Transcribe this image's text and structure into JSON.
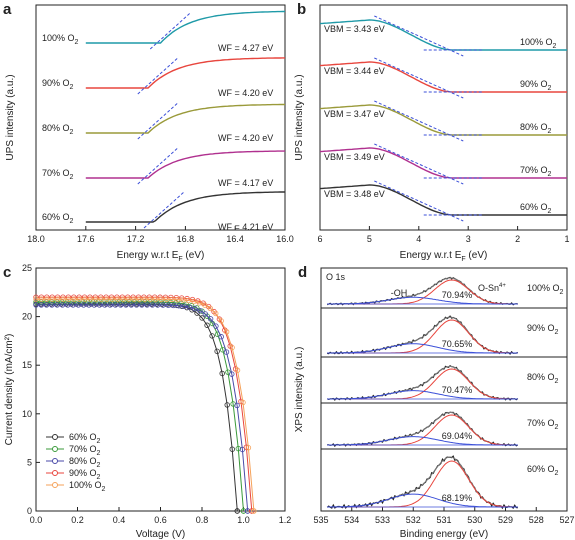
{
  "chart_data": [
    {
      "panel": "a",
      "type": "line",
      "xlabel_main": "Energy w.r.t E",
      "xlabel_sub": "F",
      "xlabel_unit": " (eV)",
      "ylabel": "UPS intensity (a.u.)",
      "xlim": [
        18.0,
        16.0
      ],
      "x_reversed": true,
      "xticks": [
        18.0,
        17.6,
        17.2,
        16.8,
        16.4,
        16.0
      ],
      "xtick_labels": [
        "18.0",
        "17.6",
        "17.2",
        "16.8",
        "16.4",
        "16.0"
      ],
      "series": [
        {
          "name": "100% O",
          "sub": "2",
          "color": "#1f9aa8",
          "baseline": 0,
          "edge": 16.85,
          "step": 1.0,
          "wf_label": "WF = 4.27 eV"
        },
        {
          "name": "90% O",
          "sub": "2",
          "color": "#e8463e",
          "baseline": 1,
          "edge": 16.95,
          "step": 0.95,
          "wf_label": "WF = 4.20 eV"
        },
        {
          "name": "80% O",
          "sub": "2",
          "color": "#9a9a3a",
          "baseline": 2,
          "edge": 16.95,
          "step": 0.9,
          "wf_label": "WF = 4.20 eV"
        },
        {
          "name": "70% O",
          "sub": "2",
          "color": "#b0308f",
          "baseline": 3,
          "edge": 16.95,
          "step": 0.85,
          "wf_label": "WF = 4.17 eV"
        },
        {
          "name": "60% O",
          "sub": "2",
          "color": "#333333",
          "baseline": 4,
          "edge": 16.9,
          "step": 0.95,
          "wf_label": "WF = 4.21 eV"
        }
      ]
    },
    {
      "panel": "b",
      "type": "line",
      "xlabel_main": "Energy w.r.t E",
      "xlabel_sub": "F",
      "xlabel_unit": " (eV)",
      "ylabel": "UPS intensity (a.u.)",
      "xlim": [
        6,
        1
      ],
      "x_reversed": true,
      "xticks": [
        6,
        5,
        4,
        3,
        2,
        1
      ],
      "xtick_labels": [
        "6",
        "5",
        "4",
        "3",
        "2",
        "1"
      ],
      "series": [
        {
          "name": "100% O",
          "sub": "2",
          "color": "#1f9aa8",
          "vbm_label": "VBM = 3.43 eV"
        },
        {
          "name": "90% O",
          "sub": "2",
          "color": "#e8463e",
          "vbm_label": "VBM = 3.44 eV"
        },
        {
          "name": "80% O",
          "sub": "2",
          "color": "#9a9a3a",
          "vbm_label": "VBM = 3.47 eV"
        },
        {
          "name": "70% O",
          "sub": "2",
          "color": "#b0308f",
          "vbm_label": "VBM = 3.49 eV"
        },
        {
          "name": "60% O",
          "sub": "2",
          "color": "#333333",
          "vbm_label": "VBM = 3.48 eV"
        }
      ]
    },
    {
      "panel": "c",
      "type": "line",
      "xlabel": "Voltage (V)",
      "ylabel": "Current density (mA/cm²)",
      "xlim": [
        0.0,
        1.2
      ],
      "ylim": [
        0,
        25
      ],
      "xticks": [
        0.0,
        0.2,
        0.4,
        0.6,
        0.8,
        1.0,
        1.2
      ],
      "xtick_labels": [
        "0.0",
        "0.2",
        "0.4",
        "0.6",
        "0.8",
        "1.0",
        "1.2"
      ],
      "yticks": [
        0,
        5,
        10,
        15,
        20,
        25
      ],
      "ytick_labels": [
        "0",
        "5",
        "10",
        "15",
        "20",
        "25"
      ],
      "series": [
        {
          "name": "60% O",
          "sub": "2",
          "color": "#333333",
          "jsc": 21.3,
          "voc": 0.97
        },
        {
          "name": "70% O",
          "sub": "2",
          "color": "#3a9a3a",
          "jsc": 21.5,
          "voc": 1.0
        },
        {
          "name": "80% O",
          "sub": "2",
          "color": "#4a4aa8",
          "jsc": 21.2,
          "voc": 1.02
        },
        {
          "name": "90% O",
          "sub": "2",
          "color": "#e8463e",
          "jsc": 22.0,
          "voc": 1.04
        },
        {
          "name": "100% O",
          "sub": "2",
          "color": "#f5a25a",
          "jsc": 21.8,
          "voc": 1.05
        }
      ]
    },
    {
      "panel": "d",
      "type": "line",
      "title": "O 1s",
      "xlabel": "Binding energy (eV)",
      "ylabel": "XPS intensity (a.u.)",
      "xlim": [
        535,
        527
      ],
      "x_reversed": true,
      "xticks": [
        535,
        534,
        533,
        532,
        531,
        530,
        529,
        528,
        527
      ],
      "xtick_labels": [
        "535",
        "534",
        "533",
        "532",
        "531",
        "530",
        "529",
        "528",
        "527"
      ],
      "peak_labels": {
        "oh": "-OH",
        "osn_main": "O-Sn",
        "osn_sup": "4+"
      },
      "series": [
        {
          "name": "100% O",
          "sub": "2",
          "percent": "70.94%"
        },
        {
          "name": "90% O",
          "sub": "2",
          "percent": "70.65%"
        },
        {
          "name": "80% O",
          "sub": "2",
          "percent": "70.47%"
        },
        {
          "name": "70% O",
          "sub": "2",
          "percent": "69.04%"
        },
        {
          "name": "60% O",
          "sub": "2",
          "percent": "68.19%"
        }
      ]
    }
  ]
}
